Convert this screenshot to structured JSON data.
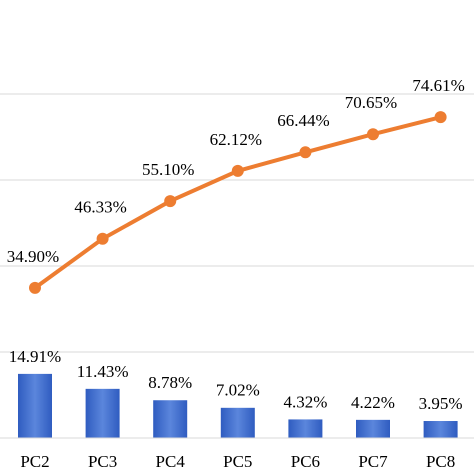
{
  "chart_data": {
    "type": "bar",
    "categories": [
      "PC2",
      "PC3",
      "PC4",
      "PC5",
      "PC6",
      "PC7",
      "PC8"
    ],
    "series": [
      {
        "type": "bar",
        "color": "#4472c4",
        "values": [
          14.91,
          11.43,
          8.78,
          7.02,
          4.32,
          4.22,
          3.95
        ],
        "value_labels": [
          "14.91%",
          "11.43%",
          "8.78%",
          "7.02%",
          "4.32%",
          "4.22%",
          "3.95%"
        ]
      },
      {
        "type": "line",
        "color": "#ed7d31",
        "values": [
          34.9,
          46.33,
          55.1,
          62.12,
          66.44,
          70.65,
          74.61
        ],
        "value_labels": [
          "34.90%",
          "46.33%",
          "55.10%",
          "62.12%",
          "66.44%",
          "70.65%",
          "74.61%"
        ]
      }
    ],
    "ylim": [
      0,
      100
    ],
    "yticks": [
      20,
      40,
      60,
      80
    ],
    "grid": true
  }
}
